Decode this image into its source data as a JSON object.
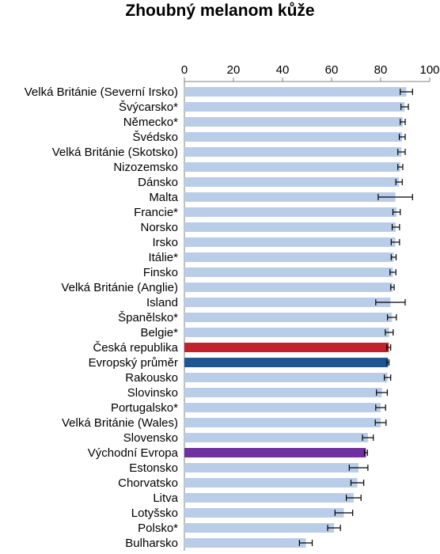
{
  "chart_data": {
    "type": "bar",
    "orientation": "horizontal",
    "title": "Zhoubný melanom kůže",
    "xlim": [
      0,
      100
    ],
    "x_ticks": [
      0,
      20,
      40,
      60,
      80,
      100
    ],
    "grid": false,
    "error_bars": true,
    "default_color": "#b9cde8",
    "categories": [
      "Velká Británie (Severní Irsko)",
      "Švýcarsko*",
      "Německo*",
      "Švédsko",
      "Velká Británie (Skotsko)",
      "Nizozemsko",
      "Dánsko",
      "Malta",
      "Francie*",
      "Norsko",
      "Irsko",
      "Itálie*",
      "Finsko",
      "Velká Británie (Anglie)",
      "Island",
      "Španělsko*",
      "Belgie*",
      "Česká republika",
      "Evropský průměr",
      "Rakousko",
      "Slovinsko",
      "Portugalsko*",
      "Velká Británie (Wales)",
      "Slovensko",
      "Východní Evropa",
      "Estonsko",
      "Chorvatsko",
      "Litva",
      "Lotyšsko",
      "Polsko*",
      "Bulharsko"
    ],
    "values": [
      90.5,
      89.8,
      89.0,
      88.8,
      88.5,
      88.0,
      87.5,
      86.0,
      86.5,
      86.2,
      86.0,
      85.3,
      85.0,
      84.8,
      84.0,
      84.6,
      83.5,
      83.3,
      83.0,
      82.8,
      80.5,
      80.0,
      80.0,
      74.8,
      74.0,
      71.0,
      70.5,
      69.0,
      65.0,
      61.0,
      49.5
    ],
    "errors": [
      2.5,
      1.5,
      1.0,
      1.2,
      1.5,
      1.0,
      1.3,
      7.0,
      1.5,
      1.5,
      1.7,
      1.0,
      1.2,
      0.7,
      6.0,
      1.8,
      1.6,
      0.8,
      0.4,
      1.3,
      2.2,
      2.0,
      2.2,
      2.2,
      0.6,
      3.8,
      2.6,
      3.0,
      3.6,
      2.6,
      2.6
    ],
    "highlights": [
      {
        "category": "Česká republika",
        "color": "#c0232b"
      },
      {
        "category": "Evropský průměr",
        "color": "#1f5591"
      },
      {
        "category": "Východní Evropa",
        "color": "#7030a0"
      }
    ]
  }
}
